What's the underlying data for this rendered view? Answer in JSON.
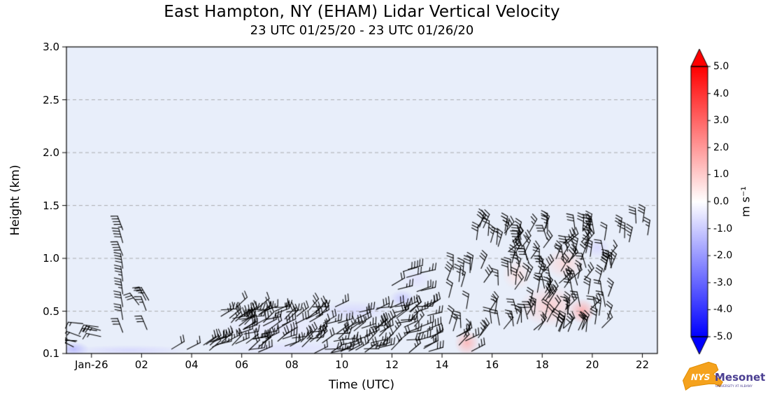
{
  "chart_data": {
    "type": "wind-barb-time-height",
    "title": "East Hampton, NY (EHAM) Lidar Vertical Velocity",
    "subtitle": "23 UTC 01/25/20 - 23 UTC 01/26/20",
    "xlabel": "Time (UTC)",
    "ylabel": "Height (km)",
    "x_range_hours_rel_0126_00utc": [
      -1.0,
      22.6
    ],
    "y_range_km": [
      0.1,
      3.0
    ],
    "x_ticks": [
      {
        "label": "Jan-26",
        "hour": 0
      },
      {
        "label": "02",
        "hour": 2
      },
      {
        "label": "04",
        "hour": 4
      },
      {
        "label": "06",
        "hour": 6
      },
      {
        "label": "08",
        "hour": 8
      },
      {
        "label": "10",
        "hour": 10
      },
      {
        "label": "12",
        "hour": 12
      },
      {
        "label": "14",
        "hour": 14
      },
      {
        "label": "16",
        "hour": 16
      },
      {
        "label": "18",
        "hour": 18
      },
      {
        "label": "20",
        "hour": 20
      },
      {
        "label": "22",
        "hour": 22
      }
    ],
    "y_ticks": [
      {
        "label": "0.1",
        "km": 0.1
      },
      {
        "label": "0.5",
        "km": 0.5
      },
      {
        "label": "1.0",
        "km": 1.0
      },
      {
        "label": "1.5",
        "km": 1.5
      },
      {
        "label": "2.0",
        "km": 2.0
      },
      {
        "label": "2.5",
        "km": 2.5
      },
      {
        "label": "3.0",
        "km": 3.0
      }
    ],
    "grid": "dashed horizontal gridlines at labeled heights",
    "fill_field": "lidar vertical velocity, near 0 m/s everywhere (pale blue field)",
    "background_color": "#e8eefa",
    "colorbar": {
      "label": "m s⁻¹",
      "min": -5.0,
      "max": 5.0,
      "extend": "both",
      "over_color": "#ff0000",
      "under_color": "#0000ff",
      "ticks": [
        {
          "label": "5.0",
          "v": 5
        },
        {
          "label": "4.0",
          "v": 4
        },
        {
          "label": "3.0",
          "v": 3
        },
        {
          "label": "2.0",
          "v": 2
        },
        {
          "label": "1.0",
          "v": 1
        },
        {
          "label": "0.0",
          "v": 0
        },
        {
          "label": "-1.0",
          "v": -1
        },
        {
          "label": "-2.0",
          "v": -2
        },
        {
          "label": "-3.0",
          "v": -3
        },
        {
          "label": "-4.0",
          "v": -4
        },
        {
          "label": "-5.0",
          "v": -5
        }
      ]
    },
    "shading_anomalies_ms": [
      {
        "t": -0.7,
        "h": 0.14,
        "rt": 0.6,
        "rh": 0.07,
        "v": -1.5
      },
      {
        "t": 1.5,
        "h": 0.13,
        "rt": 2.5,
        "rh": 0.05,
        "v": -0.8
      },
      {
        "t": 7.5,
        "h": 0.35,
        "rt": 2.5,
        "rh": 0.15,
        "v": -0.5
      },
      {
        "t": 8.0,
        "h": 0.15,
        "rt": 3.0,
        "rh": 0.07,
        "v": -0.6
      },
      {
        "t": 10.5,
        "h": 0.5,
        "rt": 1.5,
        "rh": 0.1,
        "v": -0.8
      },
      {
        "t": 12.4,
        "h": 0.62,
        "rt": 0.5,
        "rh": 0.08,
        "v": -1.2
      },
      {
        "t": 13.0,
        "h": 0.8,
        "rt": 0.6,
        "rh": 0.1,
        "v": -0.6
      },
      {
        "t": 15.0,
        "h": 0.2,
        "rt": 0.5,
        "rh": 0.12,
        "v": 1.5
      },
      {
        "t": 17.0,
        "h": 0.85,
        "rt": 0.6,
        "rh": 0.15,
        "v": 0.6
      },
      {
        "t": 18.3,
        "h": 0.55,
        "rt": 1.2,
        "rh": 0.2,
        "v": 1.0
      },
      {
        "t": 19.6,
        "h": 0.5,
        "rt": 0.5,
        "rh": 0.12,
        "v": 1.8
      },
      {
        "t": 18.9,
        "h": 0.95,
        "rt": 0.8,
        "rh": 0.15,
        "v": 0.8
      },
      {
        "t": 20.2,
        "h": 1.1,
        "rt": 0.5,
        "rh": 0.1,
        "v": -0.8
      }
    ],
    "wind_barb_clusters": [
      {
        "id": "left-edge-sfc",
        "t0": -1.0,
        "t1": 0.6,
        "h0": 0.12,
        "h1": 0.4,
        "count": 10,
        "dir": 165,
        "spread": 40,
        "speed": 20,
        "column": false
      },
      {
        "id": "column-0130",
        "t0": 1.1,
        "t1": 1.4,
        "h0": 0.3,
        "h1": 1.27,
        "count": 9,
        "dir": 105,
        "spread": 15,
        "speed": 28,
        "column": true
      },
      {
        "id": "cluster-0200",
        "t0": 1.8,
        "t1": 2.4,
        "h0": 0.3,
        "h1": 0.62,
        "count": 5,
        "dir": 120,
        "spread": 20,
        "speed": 25,
        "column": false
      },
      {
        "id": "low-02-05",
        "t0": 2.0,
        "t1": 5.0,
        "h0": 0.12,
        "h1": 0.22,
        "count": 9,
        "dir": 30,
        "spread": 30,
        "speed": 15,
        "column": false
      },
      {
        "id": "band-05-1330",
        "t0": 5.0,
        "t1": 13.6,
        "h0": 0.1,
        "h1": 0.55,
        "count": 160,
        "dir": 25,
        "spread": 50,
        "speed": 22,
        "column": false
      },
      {
        "id": "mid-12-13",
        "t0": 11.8,
        "t1": 13.2,
        "h0": 0.6,
        "h1": 0.9,
        "count": 8,
        "dir": 20,
        "spread": 25,
        "speed": 25,
        "column": false
      },
      {
        "id": "low-14-15",
        "t0": 14.3,
        "t1": 15.6,
        "h0": 0.1,
        "h1": 0.28,
        "count": 8,
        "dir": 45,
        "spread": 40,
        "speed": 20,
        "column": false
      },
      {
        "id": "column-14-15",
        "t0": 14.2,
        "t1": 15.2,
        "h0": 0.3,
        "h1": 0.95,
        "count": 12,
        "dir": 80,
        "spread": 30,
        "speed": 25,
        "column": false
      },
      {
        "id": "cluster-15-21",
        "t0": 15.3,
        "t1": 20.8,
        "h0": 0.3,
        "h1": 1.3,
        "count": 140,
        "dir": 75,
        "spread": 70,
        "speed": 25,
        "column": false
      },
      {
        "id": "high-21-22",
        "t0": 20.9,
        "t1": 22.3,
        "h0": 1.1,
        "h1": 1.35,
        "count": 6,
        "dir": 80,
        "spread": 30,
        "speed": 30,
        "column": false
      }
    ],
    "barb_speed_units": "knots (approx)"
  },
  "logo": {
    "nys": "NYS",
    "mesonet": "Mesonet",
    "tagline": "UNIVERSITY AT ALBANY"
  }
}
